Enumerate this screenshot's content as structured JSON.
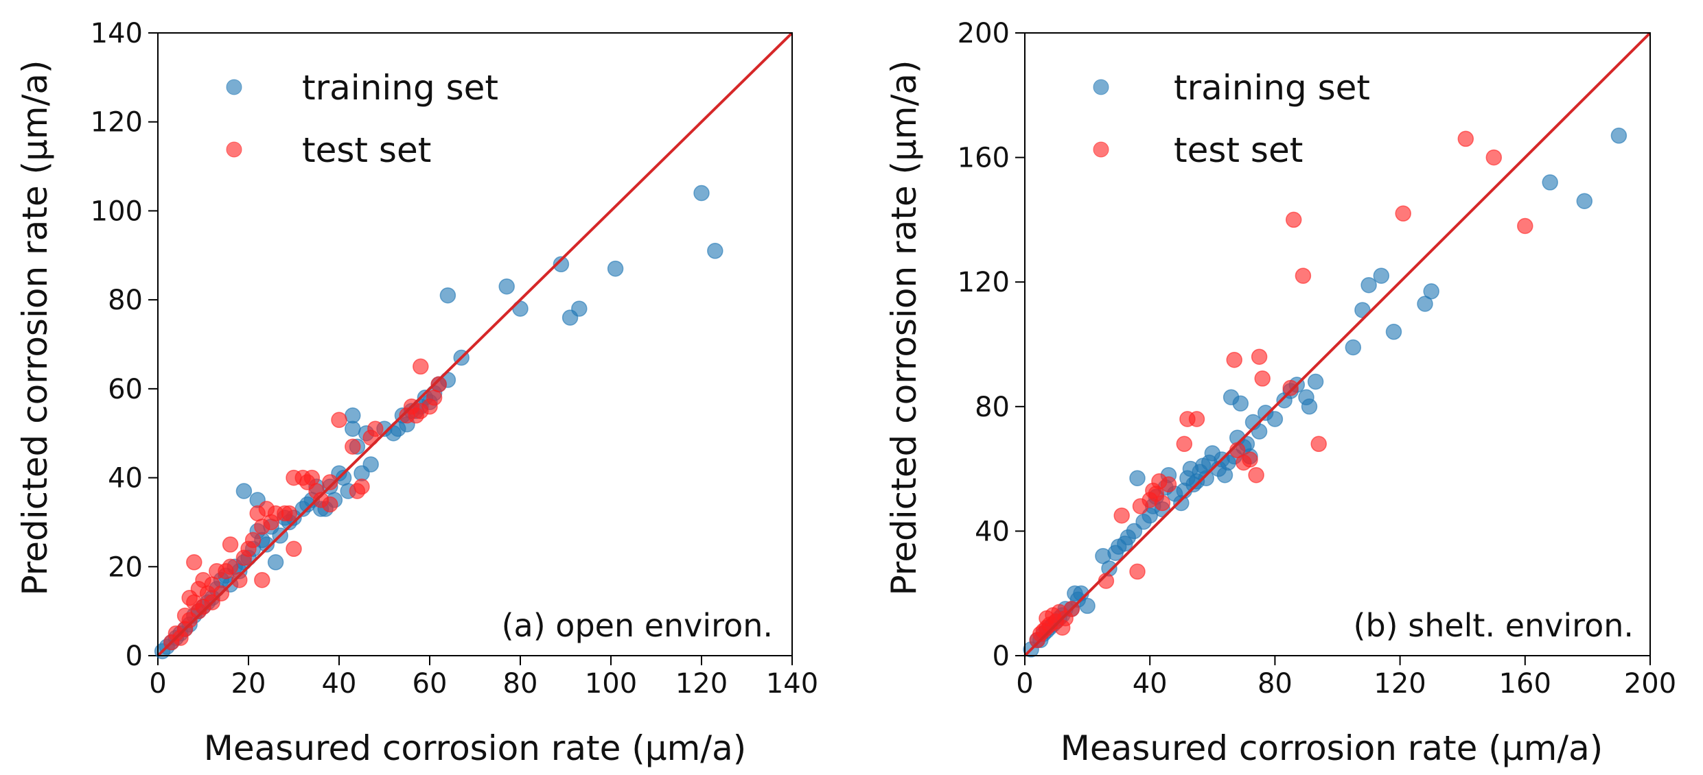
{
  "chart_data": [
    {
      "type": "scatter",
      "panel": "a",
      "annotation": "(a) open environ.",
      "xlabel": "Measured corrosion rate (μm/a)",
      "ylabel": "Predicted corrosion rate (μm/a)",
      "xlim": [
        0,
        140
      ],
      "ylim": [
        0,
        140
      ],
      "xticks": [
        "0",
        "20",
        "40",
        "60",
        "80",
        "100",
        "120",
        "140"
      ],
      "yticks": [
        "0",
        "20",
        "40",
        "60",
        "80",
        "100",
        "120",
        "140"
      ],
      "legend": {
        "position": "top-left",
        "entries": [
          "training set",
          "test set"
        ]
      },
      "reference_line": {
        "name": "y = x",
        "color": "#d62728",
        "from": [
          0,
          0
        ],
        "to": [
          140,
          140
        ]
      },
      "colors": {
        "training": "#1f77b4",
        "test": "#ff1f1f"
      },
      "series": [
        {
          "name": "training set",
          "points": [
            [
              1,
              1
            ],
            [
              2,
              2
            ],
            [
              3,
              3
            ],
            [
              4,
              4
            ],
            [
              5,
              5
            ],
            [
              6,
              6
            ],
            [
              7,
              7
            ],
            [
              8,
              9
            ],
            [
              9,
              10
            ],
            [
              10,
              11
            ],
            [
              11,
              12
            ],
            [
              12,
              13
            ],
            [
              13,
              15
            ],
            [
              14,
              17
            ],
            [
              15,
              18
            ],
            [
              16,
              16
            ],
            [
              17,
              20
            ],
            [
              18,
              19
            ],
            [
              19,
              21
            ],
            [
              20,
              22
            ],
            [
              21,
              24
            ],
            [
              22,
              28
            ],
            [
              23,
              26
            ],
            [
              24,
              25
            ],
            [
              25,
              29
            ],
            [
              26,
              21
            ],
            [
              27,
              27
            ],
            [
              28,
              31
            ],
            [
              29,
              30
            ],
            [
              30,
              31
            ],
            [
              32,
              33
            ],
            [
              33,
              34
            ],
            [
              34,
              35
            ],
            [
              19,
              37
            ],
            [
              22,
              35
            ],
            [
              35,
              38
            ],
            [
              36,
              33
            ],
            [
              37,
              33
            ],
            [
              38,
              38
            ],
            [
              39,
              35
            ],
            [
              40,
              41
            ],
            [
              41,
              40
            ],
            [
              42,
              37
            ],
            [
              43,
              51
            ],
            [
              43,
              54
            ],
            [
              44,
              47
            ],
            [
              45,
              41
            ],
            [
              46,
              50
            ],
            [
              47,
              43
            ],
            [
              50,
              51
            ],
            [
              52,
              50
            ],
            [
              53,
              51
            ],
            [
              54,
              54
            ],
            [
              55,
              52
            ],
            [
              56,
              55
            ],
            [
              57,
              55
            ],
            [
              58,
              56
            ],
            [
              59,
              58
            ],
            [
              60,
              57
            ],
            [
              61,
              59
            ],
            [
              62,
              61
            ],
            [
              64,
              62
            ],
            [
              67,
              67
            ],
            [
              64,
              81
            ],
            [
              77,
              83
            ],
            [
              80,
              78
            ],
            [
              89,
              88
            ],
            [
              91,
              76
            ],
            [
              93,
              78
            ],
            [
              101,
              87
            ],
            [
              120,
              104
            ],
            [
              123,
              91
            ]
          ]
        },
        {
          "name": "test set",
          "points": [
            [
              3,
              3
            ],
            [
              4,
              5
            ],
            [
              5,
              4
            ],
            [
              6,
              6
            ],
            [
              6,
              9
            ],
            [
              7,
              8
            ],
            [
              7,
              13
            ],
            [
              8,
              12
            ],
            [
              8,
              21
            ],
            [
              9,
              10
            ],
            [
              9,
              15
            ],
            [
              10,
              11
            ],
            [
              10,
              17
            ],
            [
              11,
              14
            ],
            [
              12,
              12
            ],
            [
              12,
              16
            ],
            [
              13,
              19
            ],
            [
              14,
              14
            ],
            [
              15,
              19
            ],
            [
              16,
              20
            ],
            [
              16,
              25
            ],
            [
              18,
              17
            ],
            [
              19,
              22
            ],
            [
              20,
              24
            ],
            [
              21,
              26
            ],
            [
              22,
              32
            ],
            [
              23,
              29
            ],
            [
              23,
              17
            ],
            [
              24,
              33
            ],
            [
              25,
              30
            ],
            [
              26,
              32
            ],
            [
              28,
              32
            ],
            [
              29,
              32
            ],
            [
              30,
              40
            ],
            [
              30,
              24
            ],
            [
              32,
              40
            ],
            [
              33,
              39
            ],
            [
              34,
              40
            ],
            [
              35,
              37
            ],
            [
              36,
              35
            ],
            [
              38,
              34
            ],
            [
              38,
              39
            ],
            [
              40,
              53
            ],
            [
              43,
              47
            ],
            [
              44,
              37
            ],
            [
              45,
              38
            ],
            [
              47,
              49
            ],
            [
              48,
              51
            ],
            [
              55,
              54
            ],
            [
              56,
              56
            ],
            [
              57,
              54
            ],
            [
              58,
              55
            ],
            [
              58,
              65
            ],
            [
              60,
              56
            ],
            [
              61,
              58
            ],
            [
              62,
              61
            ]
          ]
        }
      ]
    },
    {
      "type": "scatter",
      "panel": "b",
      "annotation": "(b) shelt. environ.",
      "xlabel": "Measured corrosion rate (μm/a)",
      "ylabel": "Predicted corrosion rate (μm/a)",
      "xlim": [
        0,
        200
      ],
      "ylim": [
        0,
        200
      ],
      "xticks": [
        "0",
        "40",
        "80",
        "120",
        "160",
        "200"
      ],
      "yticks": [
        "0",
        "40",
        "80",
        "120",
        "160",
        "200"
      ],
      "legend": {
        "position": "top-left",
        "entries": [
          "training set",
          "test set"
        ]
      },
      "reference_line": {
        "name": "y = x",
        "color": "#d62728",
        "from": [
          0,
          0
        ],
        "to": [
          200,
          200
        ]
      },
      "colors": {
        "training": "#1f77b4",
        "test": "#ff1f1f"
      },
      "series": [
        {
          "name": "training set",
          "points": [
            [
              2,
              2
            ],
            [
              4,
              5
            ],
            [
              5,
              5
            ],
            [
              6,
              7
            ],
            [
              7,
              8
            ],
            [
              8,
              9
            ],
            [
              9,
              10
            ],
            [
              10,
              11
            ],
            [
              11,
              12
            ],
            [
              12,
              13
            ],
            [
              13,
              15
            ],
            [
              15,
              15
            ],
            [
              16,
              20
            ],
            [
              17,
              18
            ],
            [
              18,
              20
            ],
            [
              20,
              16
            ],
            [
              25,
              32
            ],
            [
              27,
              28
            ],
            [
              29,
              33
            ],
            [
              30,
              35
            ],
            [
              32,
              36
            ],
            [
              33,
              38
            ],
            [
              35,
              40
            ],
            [
              36,
              57
            ],
            [
              38,
              43
            ],
            [
              40,
              45
            ],
            [
              41,
              48
            ],
            [
              42,
              51
            ],
            [
              44,
              47
            ],
            [
              45,
              54
            ],
            [
              46,
              58
            ],
            [
              48,
              52
            ],
            [
              50,
              49
            ],
            [
              51,
              53
            ],
            [
              52,
              57
            ],
            [
              53,
              60
            ],
            [
              54,
              55
            ],
            [
              55,
              56
            ],
            [
              56,
              59
            ],
            [
              57,
              61
            ],
            [
              58,
              57
            ],
            [
              59,
              62
            ],
            [
              60,
              65
            ],
            [
              62,
              60
            ],
            [
              63,
              63
            ],
            [
              64,
              58
            ],
            [
              65,
              62
            ],
            [
              66,
              83
            ],
            [
              67,
              64
            ],
            [
              68,
              70
            ],
            [
              69,
              81
            ],
            [
              70,
              67
            ],
            [
              71,
              68
            ],
            [
              72,
              64
            ],
            [
              73,
              75
            ],
            [
              75,
              72
            ],
            [
              77,
              78
            ],
            [
              80,
              76
            ],
            [
              83,
              82
            ],
            [
              85,
              85
            ],
            [
              87,
              87
            ],
            [
              90,
              83
            ],
            [
              91,
              80
            ],
            [
              93,
              88
            ],
            [
              105,
              99
            ],
            [
              108,
              111
            ],
            [
              110,
              119
            ],
            [
              114,
              122
            ],
            [
              118,
              104
            ],
            [
              128,
              113
            ],
            [
              130,
              117
            ],
            [
              168,
              152
            ],
            [
              179,
              146
            ],
            [
              190,
              167
            ]
          ]
        },
        {
          "name": "test set",
          "points": [
            [
              4,
              5
            ],
            [
              5,
              7
            ],
            [
              6,
              8
            ],
            [
              7,
              9
            ],
            [
              7,
              12
            ],
            [
              8,
              10
            ],
            [
              9,
              13
            ],
            [
              10,
              11
            ],
            [
              11,
              14
            ],
            [
              12,
              9
            ],
            [
              13,
              12
            ],
            [
              15,
              15
            ],
            [
              26,
              24
            ],
            [
              31,
              45
            ],
            [
              36,
              27
            ],
            [
              37,
              48
            ],
            [
              40,
              50
            ],
            [
              41,
              53
            ],
            [
              42,
              52
            ],
            [
              43,
              56
            ],
            [
              44,
              49
            ],
            [
              46,
              55
            ],
            [
              51,
              68
            ],
            [
              52,
              76
            ],
            [
              55,
              76
            ],
            [
              67,
              95
            ],
            [
              68,
              66
            ],
            [
              70,
              62
            ],
            [
              72,
              63
            ],
            [
              74,
              58
            ],
            [
              75,
              96
            ],
            [
              76,
              89
            ],
            [
              85,
              86
            ],
            [
              86,
              140
            ],
            [
              89,
              122
            ],
            [
              94,
              68
            ],
            [
              121,
              142
            ],
            [
              141,
              166
            ],
            [
              150,
              160
            ],
            [
              160,
              138
            ]
          ]
        }
      ]
    }
  ]
}
